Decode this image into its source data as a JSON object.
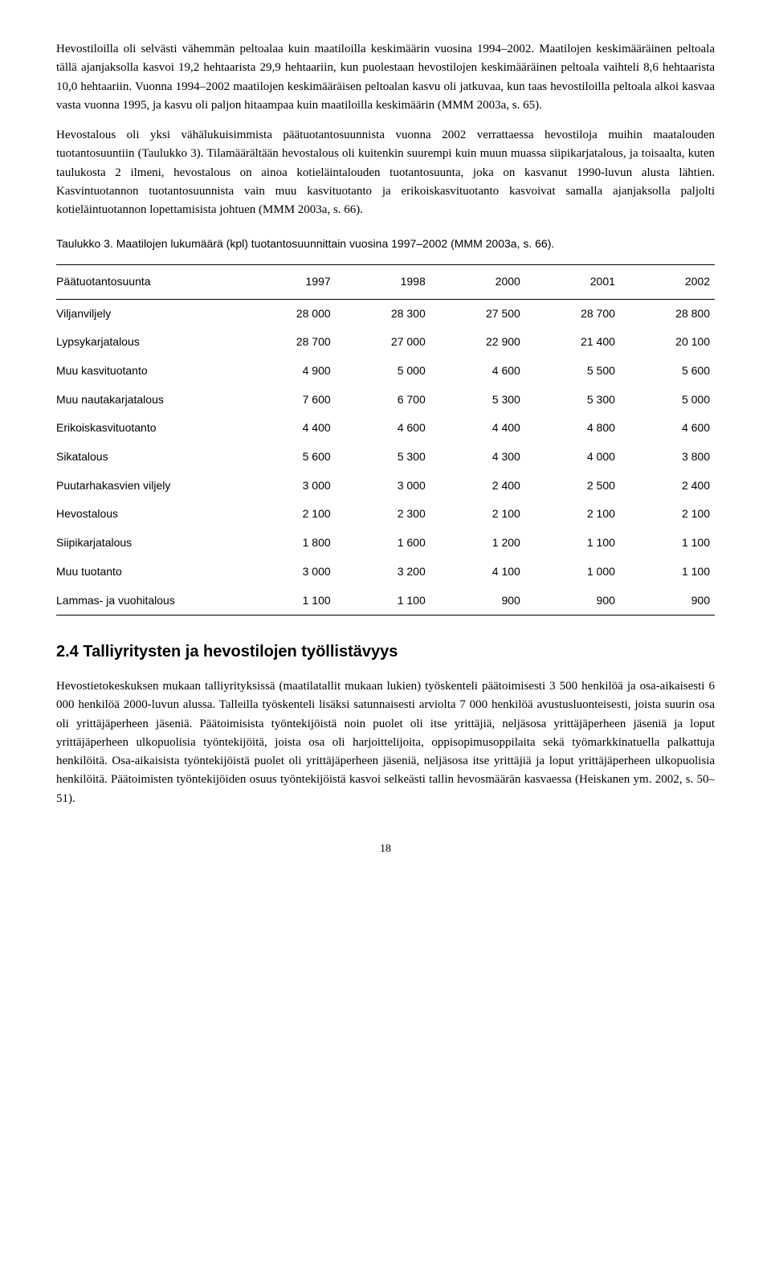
{
  "paragraphs": {
    "p1": "Hevostiloilla oli selvästi vähemmän peltoalaa kuin maatiloilla keskimäärin vuosina 1994–2002. Maatilojen keskimääräinen peltoala tällä ajanjaksolla kasvoi 19,2 hehtaarista 29,9 hehtaariin, kun puolestaan hevostilojen keskimääräinen peltoala vaihteli 8,6 hehtaarista 10,0 hehtaariin. Vuonna 1994–2002 maatilojen keskimääräisen peltoalan kasvu oli jatkuvaa, kun taas hevostiloilla peltoala alkoi kasvaa vasta vuonna 1995, ja kasvu oli paljon hitaampaa kuin maatiloilla keskimäärin (MMM 2003a, s. 65).",
    "p2": "Hevostalous oli yksi vähälukuisimmista päätuotantosuunnista vuonna 2002 verrattaessa hevostiloja muihin maatalouden tuotantosuuntiin (Taulukko 3). Tilamäärältään hevostalous oli kuitenkin suurempi kuin muun muassa siipikarjatalous, ja toisaalta, kuten taulukosta 2 ilmeni, hevostalous on ainoa kotieläintalouden tuotantosuunta, joka on kasvanut 1990-luvun alusta lähtien. Kasvintuotannon tuotantosuunnista vain muu kasvituotanto ja erikoiskasvituotanto kasvoivat samalla ajanjaksolla paljolti kotieläintuotannon lopettamisista johtuen (MMM 2003a, s. 66).",
    "p3": "Hevostietokeskuksen mukaan talliyrityksissä (maatilatallit mukaan lukien) työskenteli päätoimisesti 3 500 henkilöä ja osa-aikaisesti 6 000 henkilöä 2000-luvun alussa. Talleilla työskenteli lisäksi satunnaisesti arviolta 7 000 henkilöä avustusluonteisesti, joista suurin osa oli yrittäjäperheen jäseniä. Päätoimisista työntekijöistä noin puolet oli itse yrittäjiä, neljäsosa yrittäjäperheen jäseniä ja loput yrittäjäperheen ulkopuolisia työntekijöitä, joista osa oli harjoittelijoita, oppisopimusoppilaita sekä työmarkkinatuella palkattuja henkilöitä. Osa-aikaisista työntekijöistä puolet oli yrittäjäperheen jäseniä, neljäsosa itse yrittäjiä ja loput yrittäjäperheen ulkopuolisia henkilöitä. Päätoimisten työntekijöiden osuus työntekijöistä kasvoi selkeästi tallin hevosmäärän kasvaessa (Heiskanen ym. 2002, s. 50–51)."
  },
  "table": {
    "caption": "Taulukko 3. Maatilojen lukumäärä (kpl) tuotantosuunnittain vuosina 1997–2002 (MMM 2003a, s. 66).",
    "header": {
      "col0": "Päätuotantosuunta",
      "col1": "1997",
      "col2": "1998",
      "col3": "2000",
      "col4": "2001",
      "col5": "2002"
    },
    "rows": [
      {
        "label": "Viljanviljely",
        "c1": "28 000",
        "c2": "28 300",
        "c3": "27 500",
        "c4": "28 700",
        "c5": "28 800"
      },
      {
        "label": "Lypsykarjatalous",
        "c1": "28 700",
        "c2": "27 000",
        "c3": "22 900",
        "c4": "21 400",
        "c5": "20 100"
      },
      {
        "label": "Muu kasvituotanto",
        "c1": "4 900",
        "c2": "5 000",
        "c3": "4 600",
        "c4": "5 500",
        "c5": "5 600"
      },
      {
        "label": "Muu nautakarjatalous",
        "c1": "7 600",
        "c2": "6 700",
        "c3": "5 300",
        "c4": "5 300",
        "c5": "5 000"
      },
      {
        "label": "Erikoiskasvituotanto",
        "c1": "4 400",
        "c2": "4 600",
        "c3": "4 400",
        "c4": "4 800",
        "c5": "4 600"
      },
      {
        "label": "Sikatalous",
        "c1": "5 600",
        "c2": "5 300",
        "c3": "4 300",
        "c4": "4 000",
        "c5": "3 800"
      },
      {
        "label": "Puutarhakasvien viljely",
        "c1": "3 000",
        "c2": "3 000",
        "c3": "2 400",
        "c4": "2 500",
        "c5": "2 400"
      },
      {
        "label": "Hevostalous",
        "c1": "2 100",
        "c2": "2 300",
        "c3": "2 100",
        "c4": "2 100",
        "c5": "2 100"
      },
      {
        "label": "Siipikarjatalous",
        "c1": "1 800",
        "c2": "1 600",
        "c3": "1 200",
        "c4": "1 100",
        "c5": "1 100"
      },
      {
        "label": "Muu tuotanto",
        "c1": "3 000",
        "c2": "3 200",
        "c3": "4 100",
        "c4": "1 000",
        "c5": "1 100"
      },
      {
        "label": "Lammas- ja vuohitalous",
        "c1": "1 100",
        "c2": "1 100",
        "c3": "900",
        "c4": "900",
        "c5": "900"
      }
    ]
  },
  "section": {
    "heading": "2.4  Talliyritysten ja hevostilojen työllistävyys"
  },
  "page_number": "18"
}
